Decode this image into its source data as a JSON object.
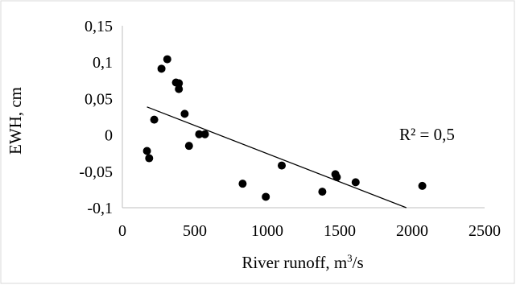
{
  "chart_data": {
    "type": "scatter",
    "title": "",
    "xlabel_text": "River runoff,  m",
    "xlabel_sup": "3",
    "xlabel_tail": "/s",
    "ylabel": "EWH, cm",
    "xlim": [
      0,
      2500
    ],
    "ylim": [
      -0.1,
      0.15
    ],
    "x_ticks": [
      0,
      500,
      1000,
      1500,
      2000,
      2500
    ],
    "x_tick_labels": [
      "0",
      "500",
      "1000",
      "1500",
      "2000",
      "2500"
    ],
    "y_ticks": [
      -0.1,
      -0.05,
      0,
      0.05,
      0.1,
      0.15
    ],
    "y_tick_labels": [
      "-0,1",
      "-0,05",
      "0",
      "0,05",
      "0,1",
      "0,15"
    ],
    "grid": false,
    "legend": "none",
    "marker_color": "#000000",
    "points": [
      {
        "x": 170,
        "y": -0.022
      },
      {
        "x": 185,
        "y": -0.032
      },
      {
        "x": 220,
        "y": 0.021
      },
      {
        "x": 270,
        "y": 0.091
      },
      {
        "x": 310,
        "y": 0.104
      },
      {
        "x": 370,
        "y": 0.072
      },
      {
        "x": 390,
        "y": 0.063
      },
      {
        "x": 390,
        "y": 0.071
      },
      {
        "x": 430,
        "y": 0.029
      },
      {
        "x": 460,
        "y": -0.015
      },
      {
        "x": 530,
        "y": 0.001
      },
      {
        "x": 570,
        "y": 0.001
      },
      {
        "x": 830,
        "y": -0.067
      },
      {
        "x": 990,
        "y": -0.085
      },
      {
        "x": 1100,
        "y": -0.042
      },
      {
        "x": 1380,
        "y": -0.078
      },
      {
        "x": 1470,
        "y": -0.054
      },
      {
        "x": 1480,
        "y": -0.058
      },
      {
        "x": 1610,
        "y": -0.065
      },
      {
        "x": 2070,
        "y": -0.07
      }
    ],
    "trendline": {
      "x": [
        170,
        1960
      ],
      "y": [
        0.0385,
        -0.1
      ],
      "label": "R² = 0,5"
    }
  }
}
